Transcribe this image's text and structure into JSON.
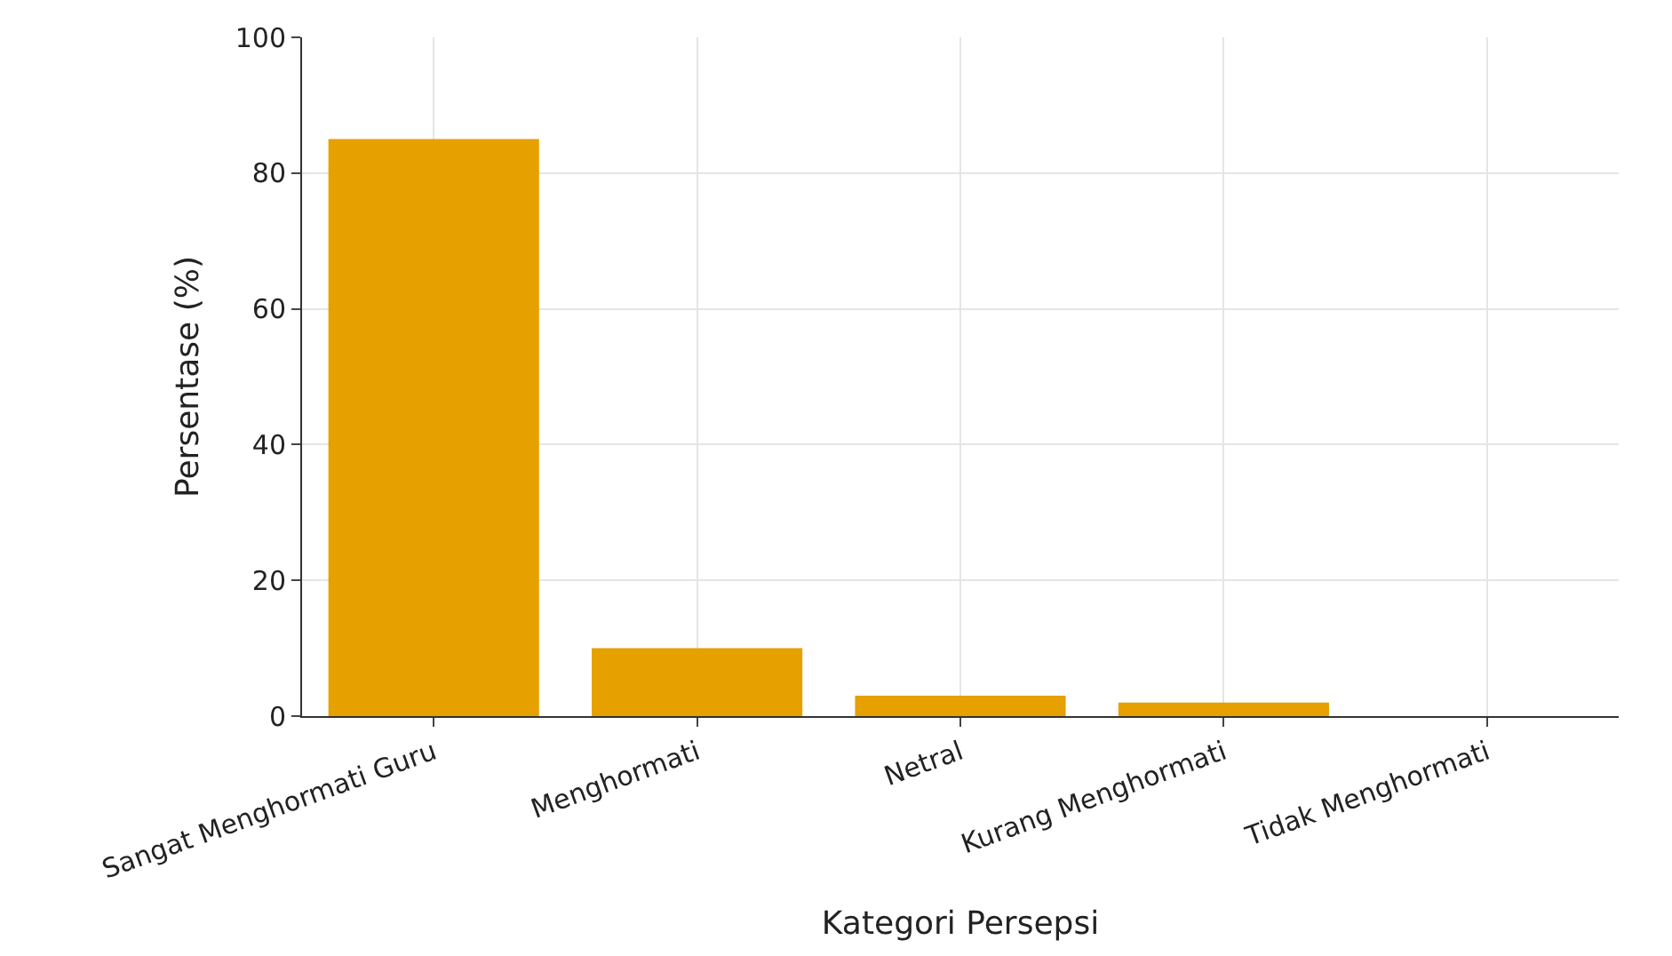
{
  "chart_data": {
    "type": "bar",
    "xlabel": "Kategori Persepsi",
    "ylabel": "Persentase (%)",
    "categories": [
      "Sangat Menghormati Guru",
      "Menghormati",
      "Netral",
      "Kurang Menghormati",
      "Tidak Menghormati"
    ],
    "values": [
      85,
      10,
      3,
      2,
      0
    ],
    "color": "#e6a000",
    "ylim": [
      0,
      100
    ],
    "yticks": [
      0,
      20,
      40,
      60,
      80,
      100
    ],
    "grid": true
  }
}
